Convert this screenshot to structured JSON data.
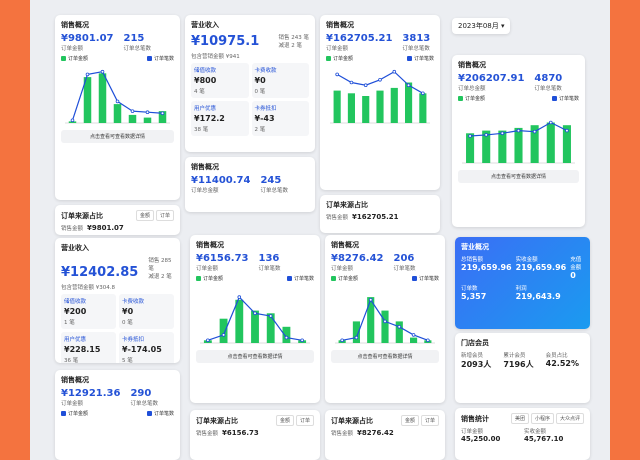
{
  "date_picker": "2023年08月",
  "cards": [
    {
      "kind": "sales",
      "title": "销售概况",
      "amount": "¥9801.07",
      "amount_label": "订单金额",
      "count": "215",
      "count_label": "订单总笔数",
      "legend": [
        "订单金额",
        "订单笔数"
      ],
      "chart": {
        "type": "bar",
        "ylim": [
          0,
          100
        ],
        "values": [
          3,
          85,
          92,
          35,
          15,
          10,
          22
        ],
        "line": [
          5,
          90,
          95,
          40,
          22,
          20,
          18
        ],
        "bar_color": "#22c55e",
        "line_color": "#1f4fd8"
      },
      "button": "点击查看可查看数据详情"
    },
    {
      "kind": "source",
      "title": "订单来源占比",
      "tabs": [
        "金额",
        "订单"
      ],
      "label": "销售金额",
      "value": "¥9801.07"
    },
    {
      "kind": "revenue",
      "title": "营业收入",
      "amount": "¥12402.85",
      "side": [
        "销售 285 笔",
        "减退 2 笔"
      ],
      "marketing": "包含营销金额 ¥304.8",
      "items": [
        {
          "label": "储值收款",
          "value": "¥200",
          "count": "1 笔"
        },
        {
          "label": "卡费收款",
          "value": "¥0",
          "count": "0 笔"
        },
        {
          "label": "用户优惠",
          "value": "¥228.15",
          "count": "36 笔"
        },
        {
          "label": "卡券抵扣",
          "value": "¥-174.05",
          "count": "5 笔"
        }
      ]
    },
    {
      "kind": "sales",
      "title": "销售概况",
      "amount": "¥12921.36",
      "amount_label": "订单金额",
      "count": "290",
      "count_label": "订单总笔数",
      "legend": [
        "订单金额",
        "订单笔数"
      ]
    },
    {
      "kind": "revenue",
      "title": "营业收入",
      "amount": "¥10975.1",
      "side": [
        "销售 243 笔",
        "减退 2 笔"
      ],
      "marketing": "包含营销金额 ¥941",
      "items": [
        {
          "label": "储值收款",
          "value": "¥800",
          "count": "4 笔"
        },
        {
          "label": "卡费收款",
          "value": "¥0",
          "count": "0 笔"
        },
        {
          "label": "用户优惠",
          "value": "¥172.2",
          "count": "38 笔"
        },
        {
          "label": "卡券抵扣",
          "value": "¥-43",
          "count": "2 笔"
        }
      ]
    },
    {
      "kind": "sales",
      "title": "销售概况",
      "amount": "¥11400.74",
      "amount_label": "订单总金额",
      "count": "245",
      "count_label": "订单总笔数"
    },
    {
      "kind": "sales",
      "title": "销售概况",
      "amount": "¥6156.73",
      "amount_label": "订单金额",
      "count": "136",
      "count_label": "订单笔数",
      "legend": [
        "订单金额",
        "订单笔数"
      ],
      "chart": {
        "type": "bar",
        "ylim": [
          0,
          100
        ],
        "values": [
          5,
          45,
          80,
          60,
          55,
          30,
          5
        ],
        "line": [
          5,
          15,
          85,
          55,
          50,
          10,
          5
        ],
        "bar_color": "#22c55e",
        "line_color": "#1f4fd8"
      },
      "button": "点击查看可查看数据详情"
    },
    {
      "kind": "source",
      "title": "订单来源占比",
      "tabs": [
        "金额",
        "订单"
      ],
      "label": "销售金额",
      "value": "¥6156.73"
    },
    {
      "kind": "sales",
      "title": "销售概况",
      "amount": "¥162705.21",
      "amount_label": "订单金额",
      "count": "3813",
      "count_label": "订单总笔数",
      "legend": [
        "订单金额",
        "订单笔数"
      ],
      "chart": {
        "type": "bar",
        "ylim": [
          0,
          100
        ],
        "values": [
          60,
          55,
          50,
          60,
          65,
          75,
          55
        ],
        "line": [
          90,
          75,
          70,
          80,
          95,
          70,
          55
        ],
        "bar_color": "#22c55e",
        "line_color": "#1f4fd8"
      }
    },
    {
      "kind": "source",
      "title": "订单来源占比",
      "label": "销售金额",
      "value": "¥162705.21"
    },
    {
      "kind": "sales",
      "title": "销售概况",
      "amount": "¥8276.42",
      "amount_label": "订单金额",
      "count": "206",
      "count_label": "订单笔数",
      "legend": [
        "订单金额",
        "订单笔数"
      ],
      "chart": {
        "type": "bar",
        "ylim": [
          0,
          100
        ],
        "values": [
          5,
          40,
          85,
          60,
          40,
          10,
          5
        ],
        "line": [
          5,
          10,
          80,
          40,
          30,
          15,
          5
        ],
        "bar_color": "#22c55e",
        "line_color": "#1f4fd8"
      },
      "button": "点击查看可查看数据详情"
    },
    {
      "kind": "source",
      "title": "订单来源占比",
      "tabs": [
        "金额",
        "订单"
      ],
      "label": "销售金额",
      "value": "¥8276.42"
    },
    {
      "kind": "sales",
      "title": "销售概况",
      "amount": "¥206207.91",
      "amount_label": "订单总金额",
      "count": "4870",
      "count_label": "订单总笔数",
      "legend": [
        "订单金额",
        "订单笔数"
      ],
      "chart": {
        "type": "bar",
        "ylim": [
          0,
          100
        ],
        "values": [
          55,
          60,
          60,
          65,
          70,
          75,
          70
        ],
        "line": [
          50,
          52,
          55,
          60,
          58,
          75,
          60
        ],
        "bar_color": "#22c55e",
        "line_color": "#1f4fd8"
      },
      "button": "点击查看可查看数据详情"
    },
    {
      "kind": "overview",
      "title": "营业概况",
      "items": [
        {
          "label": "总销售额",
          "value": "219,659.96"
        },
        {
          "label": "实收金额",
          "value": "219,659.96"
        },
        {
          "label": "充值金额",
          "value": "0"
        },
        {
          "label": "订单数",
          "value": "5,357"
        },
        {
          "label": "利润",
          "value": "219,643.9"
        }
      ]
    },
    {
      "kind": "members",
      "title": "门店会员",
      "items": [
        {
          "label": "新增会员",
          "value": "2093人"
        },
        {
          "label": "累计会员",
          "value": "7196人"
        },
        {
          "label": "会员占比",
          "value": "42.52%"
        }
      ]
    },
    {
      "kind": "stats",
      "title": "销售统计",
      "tabs": [
        "美团",
        "小程序",
        "大众点评"
      ],
      "items": [
        {
          "label": "订单金额",
          "value": "45,250.00"
        },
        {
          "label": "实收金额",
          "value": "45,767.10"
        }
      ]
    }
  ]
}
